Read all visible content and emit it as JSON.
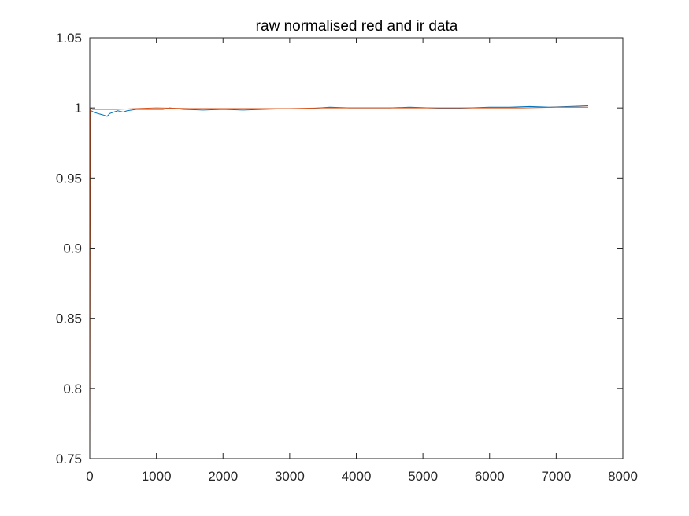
{
  "chart_data": {
    "type": "line",
    "title": "raw normalised red and ir data",
    "xlabel": "",
    "ylabel": "",
    "xlim": [
      0,
      8000
    ],
    "ylim": [
      0.75,
      1.05
    ],
    "xticks": [
      0,
      1000,
      2000,
      3000,
      4000,
      5000,
      6000,
      7000,
      8000
    ],
    "xtick_labels": [
      "0",
      "1000",
      "2000",
      "3000",
      "4000",
      "5000",
      "6000",
      "7000",
      "8000"
    ],
    "yticks": [
      0.75,
      0.8,
      0.85,
      0.9,
      0.95,
      1,
      1.05
    ],
    "ytick_labels": [
      "0.75",
      "0.8",
      "0.85",
      "0.9",
      "0.95",
      "1",
      "1.05"
    ],
    "grid": false,
    "legend": "none",
    "series": [
      {
        "color": "#0072BD",
        "x": [
          0,
          20,
          60,
          120,
          200,
          260,
          300,
          360,
          420,
          500,
          560,
          700,
          900,
          1100,
          1200,
          1400,
          1700,
          2000,
          2300,
          2600,
          3000,
          3300,
          3600,
          3900,
          4200,
          4500,
          4800,
          5100,
          5400,
          5700,
          6000,
          6300,
          6600,
          6900,
          7200,
          7480
        ],
        "y": [
          0.998,
          0.998,
          0.997,
          0.996,
          0.995,
          0.994,
          0.996,
          0.997,
          0.998,
          0.997,
          0.998,
          0.999,
          0.999,
          0.999,
          1.0,
          0.999,
          0.9985,
          0.999,
          0.9985,
          0.999,
          0.9995,
          0.9995,
          1.0005,
          1.0,
          1.0,
          1.0,
          1.0005,
          1.0,
          0.9995,
          1.0,
          1.0005,
          1.0005,
          1.001,
          1.0005,
          1.001,
          1.0015
        ]
      },
      {
        "color": "#D95319",
        "x": [
          0,
          5,
          10,
          20,
          40,
          100,
          200,
          400,
          700,
          1000,
          1500,
          2000,
          2500,
          3000,
          3500,
          4000,
          4500,
          5000,
          5500,
          6000,
          6500,
          7000,
          7480
        ],
        "y": [
          0.75,
          0.9,
          0.999,
          1.0,
          0.999,
          0.999,
          0.999,
          0.999,
          0.9995,
          1.0,
          0.9995,
          0.9995,
          0.9995,
          0.9995,
          1.0,
          1.0,
          1.0,
          1.0,
          1.0,
          1.0,
          1.0,
          1.0005,
          1.0005
        ]
      }
    ]
  }
}
